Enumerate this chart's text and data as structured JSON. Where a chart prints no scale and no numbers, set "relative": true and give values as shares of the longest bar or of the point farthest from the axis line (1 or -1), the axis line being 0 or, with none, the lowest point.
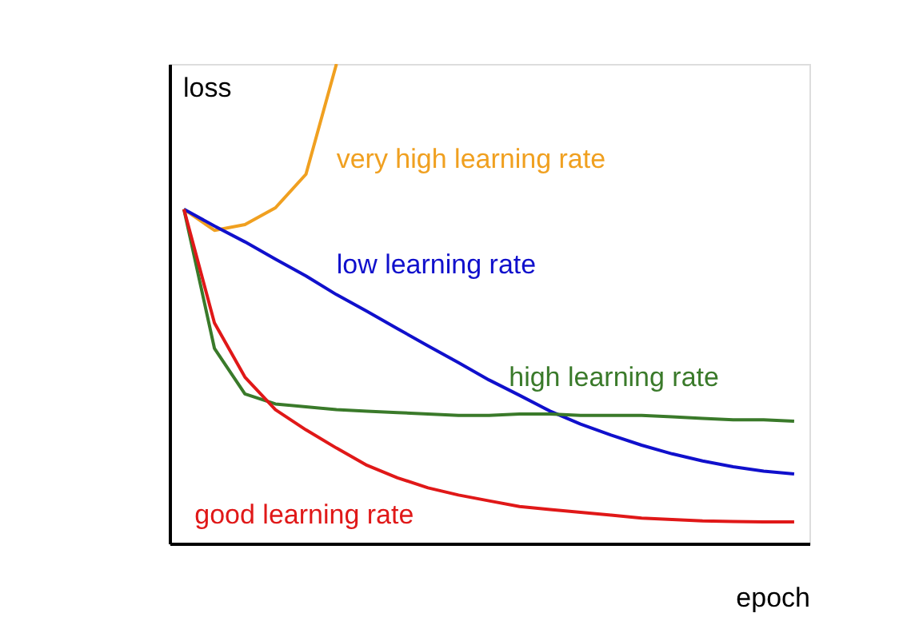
{
  "chart_data": {
    "type": "line",
    "relative": true,
    "xlabel": "epoch",
    "ylabel": "loss",
    "legend": false,
    "grid": false,
    "tick_labels": false,
    "marker": "none",
    "line_style": "solid",
    "categories": [
      null,
      null,
      null,
      null,
      null,
      null,
      null,
      null,
      null,
      null,
      null,
      null,
      null,
      null,
      null,
      null,
      null,
      null,
      null,
      null,
      null
    ],
    "series": [
      {
        "name": "very high learning rate",
        "color": "#f0a020",
        "values": [
          0.697,
          0.653,
          0.665,
          0.7,
          0.77,
          1.0,
          null,
          null,
          null,
          null,
          null,
          null,
          null,
          null,
          null,
          null,
          null,
          null,
          null,
          null,
          null
        ]
      },
      {
        "name": "low learning rate",
        "color": "#1010cc",
        "values": [
          0.697,
          0.662,
          0.629,
          0.593,
          0.558,
          0.519,
          0.484,
          0.448,
          0.412,
          0.377,
          0.341,
          0.309,
          0.276,
          0.249,
          0.226,
          0.205,
          0.187,
          0.172,
          0.16,
          0.151,
          0.145
        ]
      },
      {
        "name": "high learning rate",
        "color": "#3a7a2a",
        "values": [
          0.697,
          0.407,
          0.312,
          0.291,
          0.285,
          0.279,
          0.276,
          0.273,
          0.27,
          0.267,
          0.267,
          0.27,
          0.27,
          0.267,
          0.267,
          0.267,
          0.264,
          0.261,
          0.258,
          0.258,
          0.255
        ]
      },
      {
        "name": "good learning rate",
        "color": "#e01818",
        "values": [
          0.697,
          0.46,
          0.347,
          0.279,
          0.237,
          0.199,
          0.163,
          0.137,
          0.116,
          0.101,
          0.089,
          0.077,
          0.071,
          0.065,
          0.059,
          0.053,
          0.05,
          0.047,
          0.046,
          0.045,
          0.045
        ]
      }
    ]
  }
}
